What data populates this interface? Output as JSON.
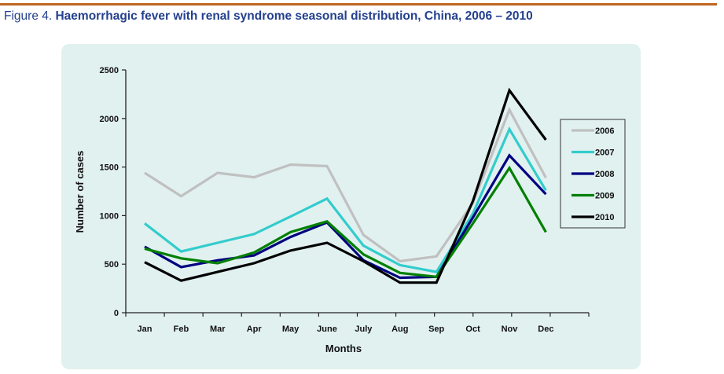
{
  "figure": {
    "label": "Figure 4.",
    "title": "Haemorrhagic fever with renal syndrome seasonal distribution, China, 2006 – 2010"
  },
  "colors": {
    "rule": "#c0651f",
    "title": "#24408e",
    "panel": "#e1f1f0"
  },
  "chart_data": {
    "type": "line",
    "title": "Haemorrhagic fever with renal syndrome seasonal distribution, China, 2006 – 2010",
    "xlabel": "Months",
    "ylabel": "Number of cases",
    "categories": [
      "Jan",
      "Feb",
      "Mar",
      "Apr",
      "May",
      "June",
      "July",
      "Aug",
      "Sep",
      "Oct",
      "Nov",
      "Dec"
    ],
    "ylim": [
      0,
      2500
    ],
    "yticks": [
      0,
      500,
      1000,
      1500,
      2000,
      2500
    ],
    "grid": false,
    "legend_position": "right",
    "series": [
      {
        "name": "2006",
        "color": "#c0c0c0",
        "values": [
          1440,
          1200,
          1440,
          1395,
          1525,
          1510,
          800,
          530,
          580,
          1130,
          2090,
          1390
        ]
      },
      {
        "name": "2007",
        "color": "#33cccc",
        "values": [
          920,
          630,
          720,
          810,
          990,
          1175,
          690,
          490,
          420,
          1020,
          1890,
          1260
        ]
      },
      {
        "name": "2008",
        "color": "#000080",
        "values": [
          680,
          470,
          540,
          590,
          780,
          930,
          540,
          360,
          370,
          980,
          1620,
          1220
        ]
      },
      {
        "name": "2009",
        "color": "#008000",
        "values": [
          660,
          560,
          510,
          620,
          830,
          940,
          600,
          410,
          370,
          920,
          1490,
          830
        ]
      },
      {
        "name": "2010",
        "color": "#000000",
        "values": [
          520,
          330,
          420,
          510,
          640,
          720,
          530,
          310,
          310,
          1150,
          2290,
          1780
        ]
      }
    ]
  }
}
